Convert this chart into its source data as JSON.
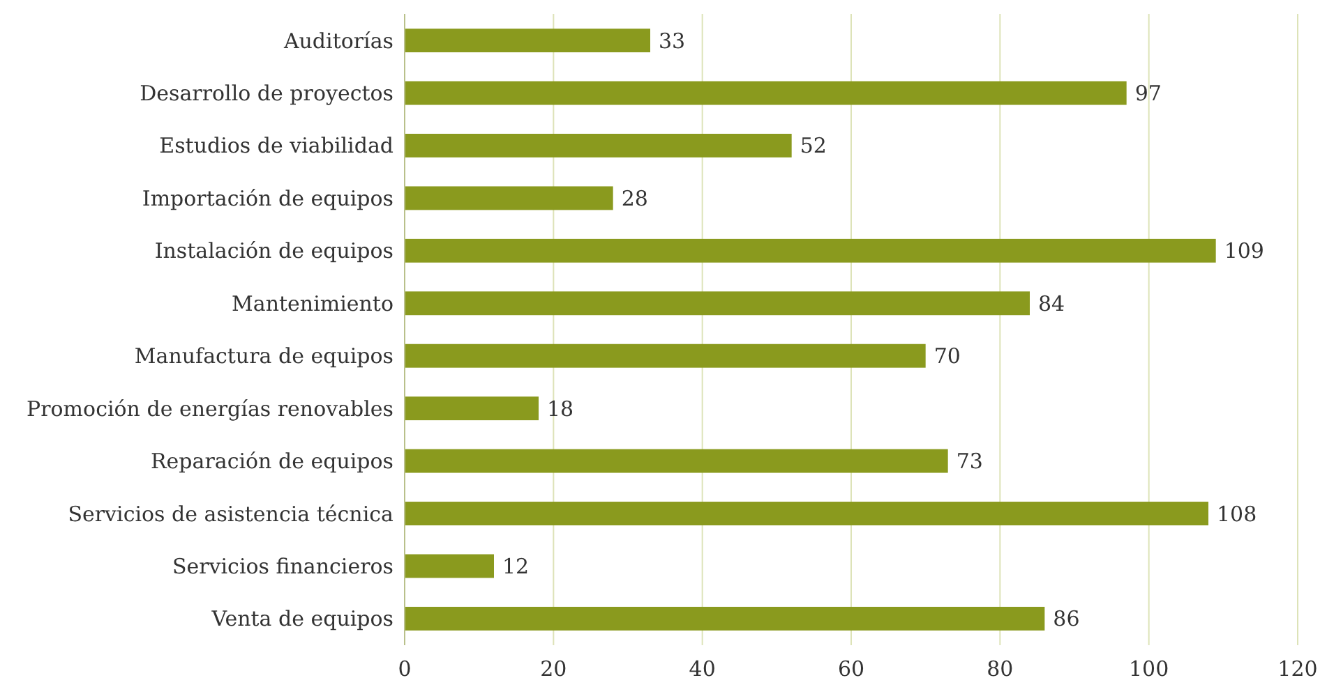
{
  "chart_data": {
    "type": "bar",
    "orientation": "horizontal",
    "categories": [
      "Auditorías",
      "Desarrollo de proyectos",
      "Estudios de viabilidad",
      "Importación de equipos",
      "Instalación de equipos",
      "Mantenimiento",
      "Manufactura de equipos",
      "Promoción de energías renovables",
      "Reparación de equipos",
      "Servicios de asistencia técnica",
      "Servicios financieros",
      "Venta de equipos"
    ],
    "values": [
      33,
      97,
      52,
      28,
      109,
      84,
      70,
      18,
      73,
      108,
      12,
      86
    ],
    "color": "#8a9a1e",
    "xlim": [
      0,
      120
    ],
    "xticks": [
      0,
      20,
      40,
      60,
      80,
      100,
      120
    ],
    "grid": "x",
    "data_labels": true
  }
}
